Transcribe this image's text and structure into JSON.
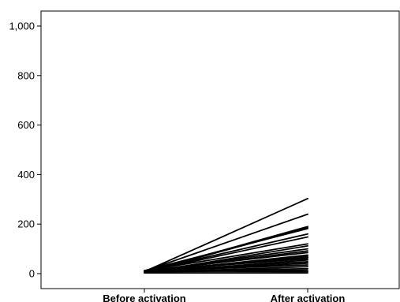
{
  "chart_data": {
    "type": "line",
    "title": "",
    "xlabel": "",
    "ylabel": "",
    "categories": [
      "Before activation",
      "After activation"
    ],
    "ylim": [
      0,
      1050
    ],
    "yticks": [
      0,
      200,
      400,
      600,
      800,
      1000
    ],
    "ytick_labels": [
      "0",
      "200",
      "400",
      "600",
      "800",
      "1,000"
    ],
    "grid": false,
    "legend": "none",
    "line_color": "#000000",
    "series": [
      {
        "values": [
          8,
          303
        ]
      },
      {
        "values": [
          10,
          240
        ]
      },
      {
        "values": [
          6,
          190
        ]
      },
      {
        "values": [
          5,
          185
        ]
      },
      {
        "values": [
          12,
          182
        ]
      },
      {
        "values": [
          9,
          160
        ]
      },
      {
        "values": [
          7,
          148
        ]
      },
      {
        "values": [
          11,
          120
        ]
      },
      {
        "values": [
          4,
          112
        ]
      },
      {
        "values": [
          8,
          100
        ]
      },
      {
        "values": [
          6,
          92
        ]
      },
      {
        "values": [
          10,
          85
        ]
      },
      {
        "values": [
          5,
          75
        ]
      },
      {
        "values": [
          9,
          70
        ]
      },
      {
        "values": [
          7,
          65
        ]
      },
      {
        "values": [
          12,
          60
        ]
      },
      {
        "values": [
          4,
          55
        ]
      },
      {
        "values": [
          8,
          48
        ]
      },
      {
        "values": [
          6,
          42
        ]
      },
      {
        "values": [
          10,
          35
        ]
      },
      {
        "values": [
          5,
          28
        ]
      },
      {
        "values": [
          9,
          20
        ]
      },
      {
        "values": [
          7,
          14
        ]
      },
      {
        "values": [
          11,
          8
        ]
      },
      {
        "values": [
          3,
          3
        ]
      }
    ]
  }
}
